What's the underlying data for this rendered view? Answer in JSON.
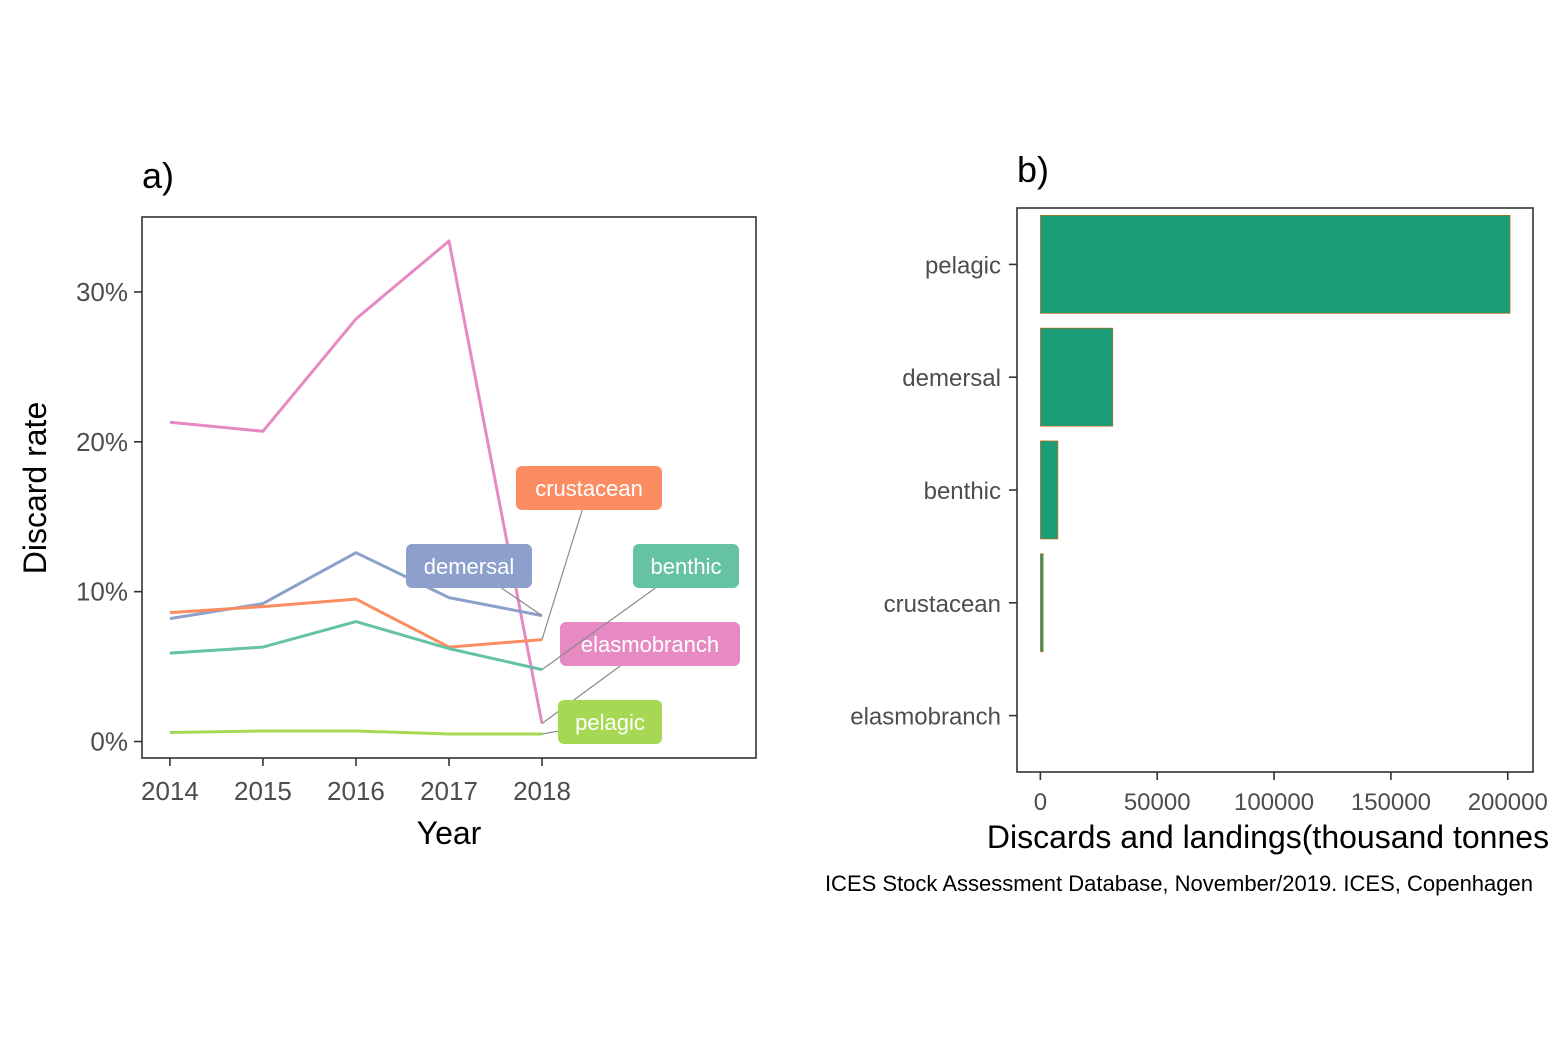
{
  "caption": "ICES Stock Assessment Database, November/2019. ICES, Copenhagen",
  "chart_data": [
    {
      "type": "line",
      "title": "a)",
      "xlabel": "Year",
      "ylabel": "Discard rate",
      "x": [
        2014,
        2015,
        2016,
        2017,
        2018
      ],
      "xticks": [
        "2014",
        "2015",
        "2016",
        "2017",
        "2018"
      ],
      "xlim": [
        2013.7,
        2020.3
      ],
      "yticks": [
        "0%",
        "10%",
        "20%",
        "30%"
      ],
      "ylim": [
        -1.1,
        35
      ],
      "grid": false,
      "legend": "direct labels at line ends",
      "series": [
        {
          "name": "elasmobranch",
          "color": "#e78ac3",
          "values": [
            21.3,
            20.7,
            28.2,
            33.4,
            1.2
          ]
        },
        {
          "name": "demersal",
          "color": "#8da0cb",
          "values": [
            8.2,
            9.2,
            12.6,
            9.6,
            8.4
          ]
        },
        {
          "name": "crustacean",
          "color": "#fc8d62",
          "values": [
            8.6,
            9.0,
            9.5,
            6.3,
            6.8
          ]
        },
        {
          "name": "benthic",
          "color": "#66c2a5",
          "values": [
            5.9,
            6.3,
            8.0,
            6.2,
            4.8
          ]
        },
        {
          "name": "pelagic",
          "color": "#a6d854",
          "values": [
            0.6,
            0.7,
            0.7,
            0.5,
            0.5
          ]
        }
      ]
    },
    {
      "type": "bar",
      "orientation": "horizontal",
      "title": "b)",
      "xlabel": "Discards and landings(thousand tonnes",
      "ylabel": "",
      "categories": [
        "pelagic",
        "demersal",
        "benthic",
        "crustacean",
        "elasmobranch"
      ],
      "values": [
        201000,
        31000,
        7500,
        1200,
        0
      ],
      "xticks": [
        "0",
        "50000",
        "100000",
        "150000",
        "200000"
      ],
      "xlim": [
        -10000,
        210800
      ],
      "grid": false,
      "colors": {
        "bar": "#1b9e77",
        "bar_edge": "#d95f02"
      }
    }
  ]
}
